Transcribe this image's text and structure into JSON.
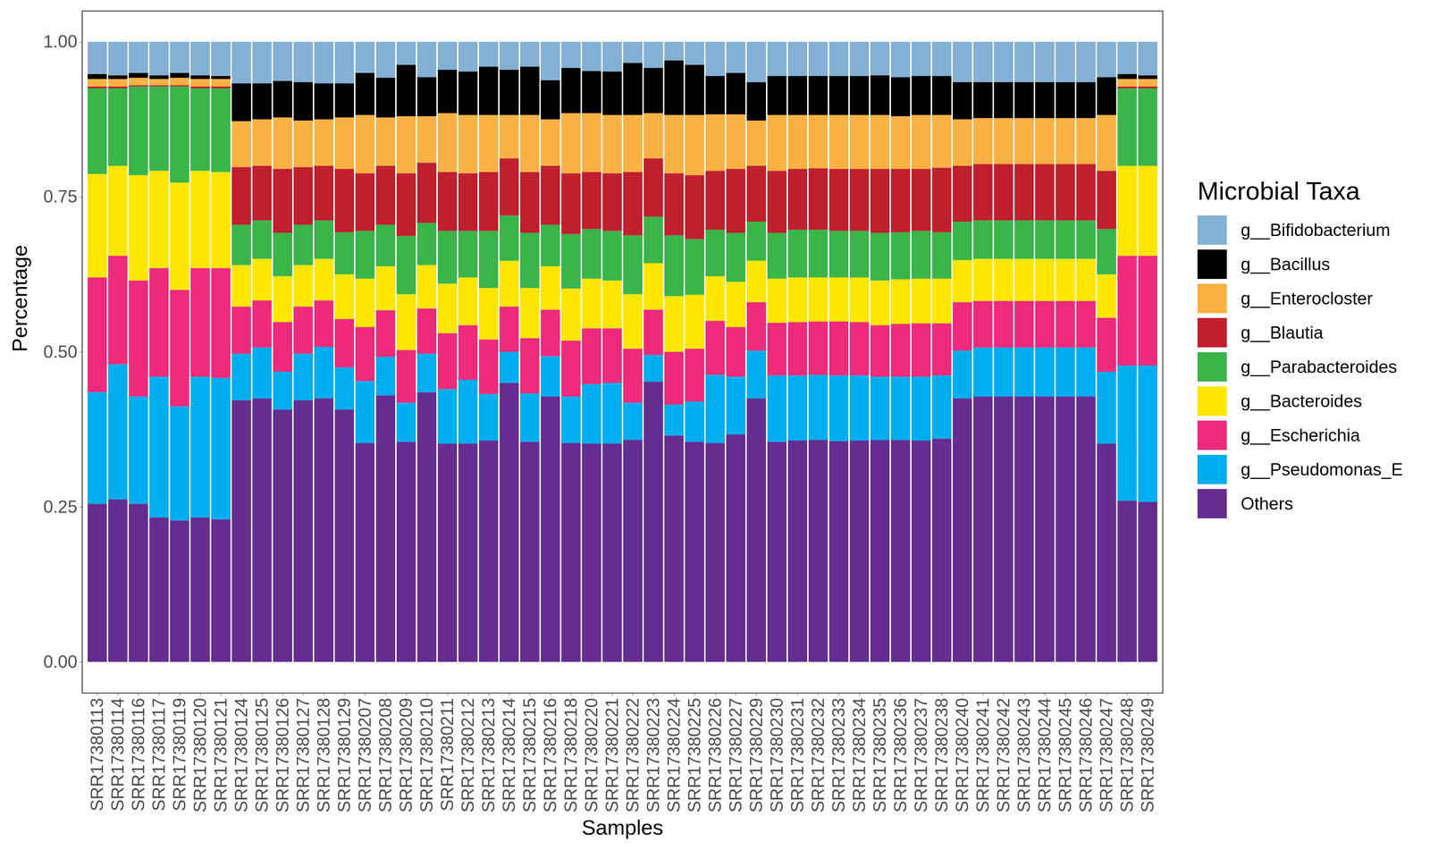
{
  "chart_data": {
    "type": "bar",
    "stacked": true,
    "grid": false,
    "legend": "right",
    "legend_title": "Microbial Taxa",
    "x_label": "Samples",
    "y_label": "Percentage",
    "ylim": [
      -0.05,
      1.05
    ],
    "yticks": [
      {
        "value": 0,
        "label": "0.00"
      },
      {
        "value": 0.25,
        "label": "0.25"
      },
      {
        "value": 0.5,
        "label": "0.50"
      },
      {
        "value": 0.75,
        "label": "0.75"
      },
      {
        "value": 1,
        "label": "1.00"
      }
    ],
    "categories": [
      "SRR17380113",
      "SRR17380114",
      "SRR17380116",
      "SRR17380117",
      "SRR17380119",
      "SRR17380120",
      "SRR17380121",
      "SRR17380124",
      "SRR17380125",
      "SRR17380126",
      "SRR17380127",
      "SRR17380128",
      "SRR17380129",
      "SRR17380207",
      "SRR17380208",
      "SRR17380209",
      "SRR17380210",
      "SRR17380211",
      "SRR17380212",
      "SRR17380213",
      "SRR17380214",
      "SRR17380215",
      "SRR17380216",
      "SRR17380218",
      "SRR17380220",
      "SRR17380221",
      "SRR17380222",
      "SRR17380223",
      "SRR17380224",
      "SRR17380225",
      "SRR17380226",
      "SRR17380227",
      "SRR17380229",
      "SRR17380230",
      "SRR17380231",
      "SRR17380232",
      "SRR17380233",
      "SRR17380234",
      "SRR17380235",
      "SRR17380236",
      "SRR17380237",
      "SRR17380238",
      "SRR17380240",
      "SRR17380241",
      "SRR17380242",
      "SRR17380243",
      "SRR17380244",
      "SRR17380245",
      "SRR17380246",
      "SRR17380247",
      "SRR17380248",
      "SRR17380249"
    ],
    "series": [
      {
        "name": "g__Bifidobacterium",
        "color": "#84B0D5",
        "values": [
          0.052,
          0.054,
          0.05,
          0.054,
          0.05,
          0.054,
          0.055,
          0.067,
          0.067,
          0.063,
          0.065,
          0.067,
          0.067,
          0.05,
          0.058,
          0.037,
          0.057,
          0.045,
          0.048,
          0.04,
          0.045,
          0.04,
          0.062,
          0.042,
          0.047,
          0.048,
          0.034,
          0.042,
          0.03,
          0.037,
          0.055,
          0.05,
          0.065,
          0.055,
          0.055,
          0.055,
          0.055,
          0.055,
          0.054,
          0.057,
          0.055,
          0.055,
          0.065,
          0.065,
          0.065,
          0.065,
          0.065,
          0.065,
          0.065,
          0.057,
          0.052,
          0.054
        ]
      },
      {
        "name": "g__Bacillus",
        "color": "#000000",
        "values": [
          0.008,
          0.006,
          0.008,
          0.006,
          0.008,
          0.006,
          0.005,
          0.061,
          0.058,
          0.059,
          0.062,
          0.058,
          0.055,
          0.068,
          0.064,
          0.083,
          0.063,
          0.07,
          0.07,
          0.078,
          0.073,
          0.078,
          0.063,
          0.073,
          0.068,
          0.07,
          0.084,
          0.073,
          0.088,
          0.081,
          0.062,
          0.067,
          0.062,
          0.063,
          0.063,
          0.063,
          0.063,
          0.063,
          0.064,
          0.063,
          0.063,
          0.063,
          0.06,
          0.058,
          0.058,
          0.058,
          0.058,
          0.058,
          0.058,
          0.061,
          0.008,
          0.006
        ]
      },
      {
        "name": "g__Enterocloster",
        "color": "#FAB144",
        "values": [
          0.012,
          0.012,
          0.012,
          0.01,
          0.012,
          0.012,
          0.012,
          0.074,
          0.075,
          0.083,
          0.075,
          0.075,
          0.083,
          0.094,
          0.078,
          0.092,
          0.075,
          0.095,
          0.094,
          0.092,
          0.07,
          0.092,
          0.075,
          0.097,
          0.095,
          0.094,
          0.092,
          0.073,
          0.094,
          0.097,
          0.091,
          0.088,
          0.073,
          0.09,
          0.087,
          0.086,
          0.087,
          0.087,
          0.087,
          0.085,
          0.087,
          0.085,
          0.075,
          0.074,
          0.074,
          0.074,
          0.074,
          0.074,
          0.074,
          0.09,
          0.012,
          0.012
        ]
      },
      {
        "name": "g__Blautia",
        "color": "#C01F2D",
        "values": [
          0.003,
          0.003,
          0.002,
          0.002,
          0.002,
          0.003,
          0.003,
          0.093,
          0.088,
          0.103,
          0.093,
          0.088,
          0.102,
          0.093,
          0.095,
          0.101,
          0.097,
          0.095,
          0.093,
          0.095,
          0.092,
          0.098,
          0.095,
          0.098,
          0.092,
          0.093,
          0.102,
          0.094,
          0.1,
          0.103,
          0.095,
          0.103,
          0.09,
          0.1,
          0.098,
          0.099,
          0.1,
          0.1,
          0.103,
          0.102,
          0.1,
          0.104,
          0.09,
          0.091,
          0.091,
          0.091,
          0.091,
          0.091,
          0.091,
          0.094,
          0.003,
          0.003
        ]
      },
      {
        "name": "g__Parabacteroides",
        "color": "#3AB54A",
        "values": [
          0.138,
          0.125,
          0.143,
          0.136,
          0.155,
          0.133,
          0.135,
          0.065,
          0.062,
          0.07,
          0.065,
          0.062,
          0.068,
          0.077,
          0.067,
          0.094,
          0.068,
          0.085,
          0.075,
          0.092,
          0.073,
          0.089,
          0.067,
          0.088,
          0.08,
          0.08,
          0.095,
          0.075,
          0.098,
          0.09,
          0.075,
          0.079,
          0.063,
          0.074,
          0.077,
          0.077,
          0.075,
          0.075,
          0.077,
          0.076,
          0.077,
          0.075,
          0.062,
          0.062,
          0.062,
          0.062,
          0.062,
          0.062,
          0.062,
          0.073,
          0.125,
          0.125
        ]
      },
      {
        "name": "g__Bacteroides",
        "color": "#FFE600",
        "values": [
          0.167,
          0.145,
          0.17,
          0.157,
          0.173,
          0.157,
          0.155,
          0.067,
          0.067,
          0.074,
          0.067,
          0.067,
          0.072,
          0.078,
          0.071,
          0.09,
          0.07,
          0.08,
          0.077,
          0.083,
          0.074,
          0.081,
          0.07,
          0.084,
          0.08,
          0.077,
          0.088,
          0.075,
          0.09,
          0.087,
          0.072,
          0.073,
          0.067,
          0.071,
          0.072,
          0.071,
          0.071,
          0.072,
          0.072,
          0.072,
          0.072,
          0.072,
          0.068,
          0.068,
          0.068,
          0.068,
          0.068,
          0.068,
          0.068,
          0.07,
          0.145,
          0.145
        ]
      },
      {
        "name": "g__Escherichia",
        "color": "#EE2A7B",
        "values": [
          0.185,
          0.175,
          0.187,
          0.175,
          0.188,
          0.175,
          0.177,
          0.076,
          0.076,
          0.08,
          0.076,
          0.075,
          0.078,
          0.087,
          0.075,
          0.085,
          0.073,
          0.09,
          0.088,
          0.088,
          0.073,
          0.089,
          0.075,
          0.09,
          0.09,
          0.088,
          0.087,
          0.073,
          0.085,
          0.085,
          0.087,
          0.08,
          0.078,
          0.085,
          0.086,
          0.086,
          0.087,
          0.086,
          0.083,
          0.085,
          0.086,
          0.084,
          0.078,
          0.075,
          0.075,
          0.075,
          0.075,
          0.075,
          0.075,
          0.087,
          0.177,
          0.177
        ]
      },
      {
        "name": "g__Pseudomonas_E",
        "color": "#00AEEF",
        "values": [
          0.18,
          0.218,
          0.173,
          0.227,
          0.184,
          0.227,
          0.228,
          0.075,
          0.082,
          0.061,
          0.075,
          0.083,
          0.068,
          0.1,
          0.062,
          0.063,
          0.062,
          0.088,
          0.103,
          0.075,
          0.05,
          0.078,
          0.065,
          0.075,
          0.096,
          0.098,
          0.06,
          0.043,
          0.05,
          0.065,
          0.11,
          0.093,
          0.077,
          0.107,
          0.105,
          0.105,
          0.106,
          0.105,
          0.102,
          0.102,
          0.103,
          0.102,
          0.077,
          0.079,
          0.079,
          0.079,
          0.079,
          0.079,
          0.079,
          0.116,
          0.218,
          0.22
        ]
      },
      {
        "name": "Others",
        "color": "#662D91",
        "values": [
          0.255,
          0.262,
          0.255,
          0.233,
          0.228,
          0.233,
          0.23,
          0.422,
          0.425,
          0.407,
          0.422,
          0.425,
          0.407,
          0.353,
          0.43,
          0.355,
          0.435,
          0.352,
          0.352,
          0.357,
          0.45,
          0.355,
          0.428,
          0.353,
          0.352,
          0.352,
          0.358,
          0.452,
          0.365,
          0.355,
          0.353,
          0.367,
          0.425,
          0.355,
          0.357,
          0.358,
          0.356,
          0.357,
          0.358,
          0.358,
          0.357,
          0.36,
          0.425,
          0.428,
          0.428,
          0.428,
          0.428,
          0.428,
          0.428,
          0.352,
          0.26,
          0.258
        ]
      }
    ]
  }
}
